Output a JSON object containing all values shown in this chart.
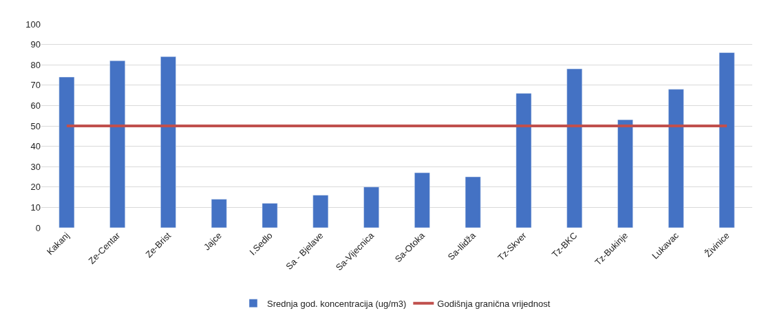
{
  "chart_data": {
    "type": "bar",
    "categories": [
      "Kakanj",
      "Ze-Centar",
      "Ze-Brist",
      "Jajce",
      "I.Sedlo",
      "Sa - Bjelave",
      "Sa-Vijecnica",
      "Sa-Otoka",
      "Sa-Ilidža",
      "Tz-Skver",
      "Tz-BKC",
      "Tz-Bukinje",
      "Lukavac",
      "Živinice"
    ],
    "series": [
      {
        "name": "Srednja god. koncentracija (ug/m3)",
        "color": "#4472c4",
        "values": [
          74,
          82,
          84,
          14,
          12,
          16,
          20,
          27,
          25,
          66,
          78,
          53,
          68,
          86
        ]
      },
      {
        "name": "Godišnja granična vrijednost",
        "type": "line",
        "color": "#c0504d",
        "values": [
          50,
          50,
          50,
          50,
          50,
          50,
          50,
          50,
          50,
          50,
          50,
          50,
          50,
          50
        ]
      }
    ],
    "ylim": [
      0,
      100
    ],
    "yticks": [
      0,
      10,
      20,
      30,
      40,
      50,
      60,
      70,
      80,
      90,
      100
    ],
    "grid": "y",
    "legend": "bottom",
    "marker": "none"
  }
}
